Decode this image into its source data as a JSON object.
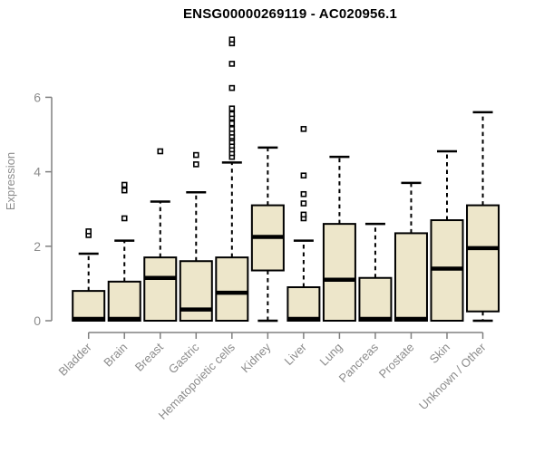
{
  "title": "ENSG00000269119 - AC020956.1",
  "colors": {
    "box_fill": "#EDE6CA",
    "box_stroke": "#000000",
    "median_line": "#000000",
    "whisker": "#000000",
    "outlier_stroke": "#000000",
    "outlier_fill": "#ffffff",
    "axis": "#808080",
    "tick_label": "#8C8C8C",
    "title_color": "#000000",
    "background": "#ffffff"
  },
  "chart_data": {
    "type": "boxplot",
    "title": "ENSG00000269119 - AC020956.1",
    "xlabel": "",
    "ylabel": "Expression",
    "yticks": [
      0,
      2,
      4,
      6
    ],
    "ylim": [
      0,
      7.8
    ],
    "grid": false,
    "legend": "none",
    "categories": [
      "Bladder",
      "Brain",
      "Breast",
      "Gastric",
      "Hematopoietic cells",
      "Kidney",
      "Liver",
      "Lung",
      "Pancreas",
      "Prostate",
      "Skin",
      "Unknown / Other"
    ],
    "series": [
      {
        "category": "Bladder",
        "q1": 0,
        "median": 0.05,
        "q3": 0.8,
        "whisker_low": 0,
        "whisker_high": 1.8,
        "outliers": [
          2.3,
          2.4
        ]
      },
      {
        "category": "Brain",
        "q1": 0,
        "median": 0.05,
        "q3": 1.05,
        "whisker_low": 0,
        "whisker_high": 2.15,
        "outliers": [
          2.75,
          3.5,
          3.65
        ]
      },
      {
        "category": "Breast",
        "q1": 0,
        "median": 1.15,
        "q3": 1.7,
        "whisker_low": 0,
        "whisker_high": 3.2,
        "outliers": [
          4.55
        ]
      },
      {
        "category": "Gastric",
        "q1": 0,
        "median": 0.3,
        "q3": 1.6,
        "whisker_low": 0,
        "whisker_high": 3.45,
        "outliers": [
          4.2,
          4.45
        ]
      },
      {
        "category": "Hematopoietic cells",
        "q1": 0,
        "median": 0.75,
        "q3": 1.7,
        "whisker_low": 0,
        "whisker_high": 4.25,
        "outliers": [
          4.4,
          4.5,
          4.6,
          4.7,
          4.8,
          4.9,
          4.95,
          5.05,
          5.15,
          5.3,
          5.45,
          5.55,
          5.7,
          6.25,
          6.9,
          7.45,
          7.55
        ]
      },
      {
        "category": "Kidney",
        "q1": 1.35,
        "median": 2.25,
        "q3": 3.1,
        "whisker_low": 0,
        "whisker_high": 4.65,
        "outliers": []
      },
      {
        "category": "Liver",
        "q1": 0,
        "median": 0.05,
        "q3": 0.9,
        "whisker_low": 0,
        "whisker_high": 2.15,
        "outliers": [
          2.75,
          2.85,
          3.15,
          3.4,
          3.9,
          5.15
        ]
      },
      {
        "category": "Lung",
        "q1": 0,
        "median": 1.1,
        "q3": 2.6,
        "whisker_low": 0,
        "whisker_high": 4.4,
        "outliers": []
      },
      {
        "category": "Pancreas",
        "q1": 0,
        "median": 0.05,
        "q3": 1.15,
        "whisker_low": 0,
        "whisker_high": 2.6,
        "outliers": []
      },
      {
        "category": "Prostate",
        "q1": 0,
        "median": 0.05,
        "q3": 2.35,
        "whisker_low": 0,
        "whisker_high": 3.7,
        "outliers": []
      },
      {
        "category": "Skin",
        "q1": 0,
        "median": 1.4,
        "q3": 2.7,
        "whisker_low": 0,
        "whisker_high": 4.55,
        "outliers": []
      },
      {
        "category": "Unknown / Other",
        "q1": 0.25,
        "median": 1.95,
        "q3": 3.1,
        "whisker_low": 0,
        "whisker_high": 5.6,
        "outliers": []
      }
    ]
  }
}
